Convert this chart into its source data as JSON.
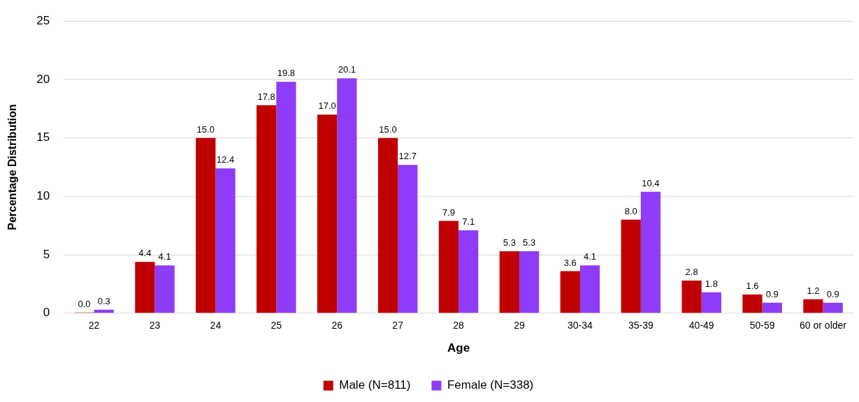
{
  "chart_data": {
    "type": "bar",
    "xlabel": "Age",
    "ylabel": "Percentage Distribution",
    "categories": [
      "22",
      "23",
      "24",
      "25",
      "26",
      "27",
      "28",
      "29",
      "30-34",
      "35-39",
      "40-49",
      "50-59",
      "60 or older"
    ],
    "series": [
      {
        "name": "Male (N=811)",
        "color": "#c00000",
        "values": [
          0.0,
          4.4,
          15.0,
          17.8,
          17.0,
          15.0,
          7.9,
          5.3,
          3.6,
          8.0,
          2.8,
          1.6,
          1.2
        ],
        "value_labels": [
          "0.0",
          "4.4",
          "15.0",
          "17.8",
          "17.0",
          "15.0",
          "7.9",
          "5.3",
          "3.6",
          "8.0",
          "2.8",
          "1.6",
          "1.2"
        ]
      },
      {
        "name": "Female (N=338)",
        "color": "#8e3cf7",
        "values": [
          0.3,
          4.1,
          12.4,
          19.8,
          20.1,
          12.7,
          7.1,
          5.3,
          4.1,
          10.4,
          1.8,
          0.9,
          0.9
        ],
        "value_labels": [
          "0.3",
          "4.1",
          "12.4",
          "19.8",
          "20.1",
          "12.7",
          "7.1",
          "5.3",
          "4.1",
          "10.4",
          "1.8",
          "0.9",
          "0.9"
        ]
      }
    ],
    "ylim": [
      0,
      25
    ],
    "yticks": [
      0,
      5,
      10,
      15,
      20,
      25
    ],
    "grid": "y",
    "legend": "bottom"
  }
}
